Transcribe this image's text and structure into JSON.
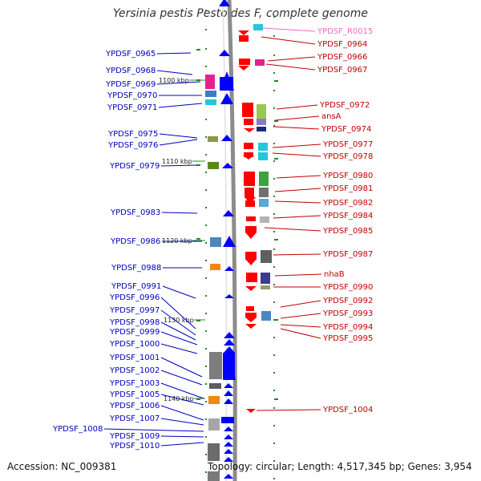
{
  "title": "Yersinia pestis Pestoides F, complete genome",
  "accession": "Accession: NC_009381",
  "topology": "Topology: circular; Length: 4,517,345 bp; Genes: 3,954",
  "colors": {
    "left_label": "#0000c0",
    "right_label": "#c00000",
    "rna_label": "#e36fc2",
    "forward_arrow": "#0000ff",
    "reverse_arrow": "#ff0000",
    "backbone": "#8c8c8c",
    "tick": "#228b22"
  },
  "kbp_marks": [
    "1100 kbp",
    "1110 kbp",
    "1120 kbp",
    "1130 kbp",
    "1140 kbp"
  ],
  "left_labels": [
    "YPDSF_0965",
    "YPDSF_0968",
    "YPDSF_0969",
    "YPDSF_0970",
    "YPDSF_0971",
    "YPDSF_0975",
    "YPDSF_0976",
    "YPDSF_0979",
    "YPDSF_0983",
    "YPDSF_0986",
    "YPDSF_0988",
    "YPDSF_0991",
    "YPDSF_0996",
    "YPDSF_0997",
    "YPDSF_0998",
    "YPDSF_0999",
    "YPDSF_1000",
    "YPDSF_1001",
    "YPDSF_1002",
    "YPDSF_1003",
    "YPDSF_1005",
    "YPDSF_1006",
    "YPDSF_1007",
    "YPDSF_1008",
    "YPDSF_1009",
    "YPDSF_1010"
  ],
  "right_labels": [
    "YPDSF_R0015",
    "YPDSF_0964",
    "YPDSF_0966",
    "YPDSF_0967",
    "YPDSF_0972",
    "ansA",
    "YPDSF_0974",
    "YPDSF_0977",
    "YPDSF_0978",
    "YPDSF_0980",
    "YPDSF_0981",
    "YPDSF_0982",
    "YPDSF_0984",
    "YPDSF_0985",
    "YPDSF_0987",
    "nhaB",
    "YPDSF_0990",
    "YPDSF_0992",
    "YPDSF_0993",
    "YPDSF_0994",
    "YPDSF_0995",
    "YPDSF_1004"
  ]
}
